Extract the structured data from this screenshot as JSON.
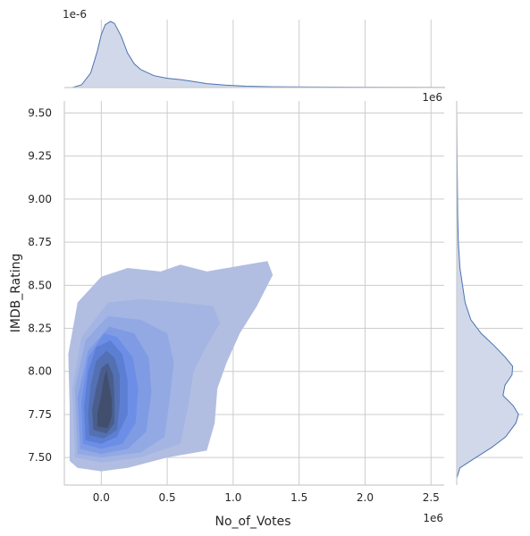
{
  "chart_data": {
    "type": "kde-jointplot",
    "xlabel": "No_of_Votes",
    "ylabel": "IMDB_Rating",
    "x_offset_label": "1e6",
    "top_marginal_offset_label": "1e-6",
    "right_marginal_offset_label": "1e6",
    "xlim": [
      -0.28,
      2.6
    ],
    "ylim": [
      7.34,
      9.57
    ],
    "x_ticks": [
      0.0,
      0.5,
      1.0,
      1.5,
      2.0,
      2.5
    ],
    "x_tick_labels": [
      "0.0",
      "0.5",
      "1.0",
      "1.5",
      "2.0",
      "2.5"
    ],
    "y_ticks": [
      7.5,
      7.75,
      8.0,
      8.25,
      8.5,
      8.75,
      9.0,
      9.25,
      9.5
    ],
    "y_tick_labels": [
      "7.50",
      "7.75",
      "8.00",
      "8.25",
      "8.50",
      "8.75",
      "9.00",
      "9.25",
      "9.50"
    ],
    "grid": true,
    "colors": {
      "levels": [
        "#b1bee2",
        "#a4b5e3",
        "#93a9e4",
        "#7f9be4",
        "#6d8ee6",
        "#5c7fd4",
        "#5370b3",
        "#4a5e8e",
        "#414e6d"
      ],
      "marginal_fill": "#d0d8ea",
      "marginal_line": "#4c72b0"
    },
    "marginal_x_density": [
      [
        -0.22,
        0.0
      ],
      [
        -0.15,
        0.04
      ],
      [
        -0.08,
        0.22
      ],
      [
        -0.03,
        0.55
      ],
      [
        0.0,
        0.8
      ],
      [
        0.03,
        0.95
      ],
      [
        0.07,
        1.0
      ],
      [
        0.1,
        0.97
      ],
      [
        0.15,
        0.78
      ],
      [
        0.2,
        0.52
      ],
      [
        0.25,
        0.36
      ],
      [
        0.3,
        0.27
      ],
      [
        0.4,
        0.18
      ],
      [
        0.5,
        0.14
      ],
      [
        0.6,
        0.12
      ],
      [
        0.7,
        0.09
      ],
      [
        0.8,
        0.06
      ],
      [
        0.95,
        0.035
      ],
      [
        1.1,
        0.02
      ],
      [
        1.3,
        0.012
      ],
      [
        1.6,
        0.008
      ],
      [
        2.0,
        0.005
      ],
      [
        2.4,
        0.003
      ],
      [
        2.6,
        0.002
      ]
    ],
    "marginal_y_density": [
      [
        7.38,
        0.0
      ],
      [
        7.44,
        0.05
      ],
      [
        7.5,
        0.3
      ],
      [
        7.56,
        0.55
      ],
      [
        7.62,
        0.76
      ],
      [
        7.7,
        0.92
      ],
      [
        7.75,
        0.96
      ],
      [
        7.8,
        0.88
      ],
      [
        7.86,
        0.72
      ],
      [
        7.92,
        0.75
      ],
      [
        7.98,
        0.86
      ],
      [
        8.03,
        0.87
      ],
      [
        8.08,
        0.76
      ],
      [
        8.15,
        0.58
      ],
      [
        8.22,
        0.38
      ],
      [
        8.3,
        0.22
      ],
      [
        8.4,
        0.13
      ],
      [
        8.5,
        0.09
      ],
      [
        8.6,
        0.05
      ],
      [
        8.75,
        0.025
      ],
      [
        8.9,
        0.015
      ],
      [
        9.1,
        0.01
      ],
      [
        9.3,
        0.004
      ],
      [
        9.55,
        0.0
      ]
    ],
    "joint_density_levels": [
      {
        "polygon": [
          [
            -0.24,
            7.48
          ],
          [
            -0.18,
            7.44
          ],
          [
            0.0,
            7.42
          ],
          [
            0.2,
            7.44
          ],
          [
            0.5,
            7.5
          ],
          [
            0.8,
            7.54
          ],
          [
            0.86,
            7.7
          ],
          [
            0.88,
            7.9
          ],
          [
            0.95,
            8.05
          ],
          [
            1.05,
            8.22
          ],
          [
            1.18,
            8.38
          ],
          [
            1.3,
            8.56
          ],
          [
            1.26,
            8.64
          ],
          [
            1.1,
            8.62
          ],
          [
            0.8,
            8.58
          ],
          [
            0.6,
            8.62
          ],
          [
            0.45,
            8.58
          ],
          [
            0.2,
            8.6
          ],
          [
            0.0,
            8.55
          ],
          [
            -0.18,
            8.4
          ],
          [
            -0.25,
            8.1
          ],
          [
            -0.24,
            7.8
          ]
        ]
      },
      {
        "polygon": [
          [
            -0.2,
            7.5
          ],
          [
            0.0,
            7.47
          ],
          [
            0.3,
            7.5
          ],
          [
            0.6,
            7.58
          ],
          [
            0.66,
            7.8
          ],
          [
            0.7,
            8.0
          ],
          [
            0.8,
            8.15
          ],
          [
            0.9,
            8.28
          ],
          [
            0.85,
            8.38
          ],
          [
            0.6,
            8.4
          ],
          [
            0.3,
            8.42
          ],
          [
            0.05,
            8.4
          ],
          [
            -0.15,
            8.2
          ],
          [
            -0.22,
            7.9
          ]
        ]
      },
      {
        "polygon": [
          [
            -0.18,
            7.52
          ],
          [
            0.0,
            7.5
          ],
          [
            0.3,
            7.53
          ],
          [
            0.48,
            7.62
          ],
          [
            0.52,
            7.85
          ],
          [
            0.55,
            8.05
          ],
          [
            0.5,
            8.22
          ],
          [
            0.3,
            8.3
          ],
          [
            0.05,
            8.32
          ],
          [
            -0.12,
            8.18
          ],
          [
            -0.2,
            7.9
          ]
        ]
      },
      {
        "polygon": [
          [
            -0.16,
            7.55
          ],
          [
            0.0,
            7.52
          ],
          [
            0.2,
            7.55
          ],
          [
            0.34,
            7.65
          ],
          [
            0.38,
            7.88
          ],
          [
            0.36,
            8.08
          ],
          [
            0.25,
            8.22
          ],
          [
            0.06,
            8.26
          ],
          [
            -0.1,
            8.12
          ],
          [
            -0.18,
            7.85
          ]
        ]
      },
      {
        "polygon": [
          [
            -0.14,
            7.58
          ],
          [
            0.0,
            7.55
          ],
          [
            0.16,
            7.58
          ],
          [
            0.26,
            7.7
          ],
          [
            0.28,
            7.9
          ],
          [
            0.24,
            8.08
          ],
          [
            0.12,
            8.2
          ],
          [
            0.02,
            8.22
          ],
          [
            -0.1,
            8.08
          ],
          [
            -0.15,
            7.82
          ]
        ]
      },
      {
        "polygon": [
          [
            -0.12,
            7.6
          ],
          [
            0.0,
            7.58
          ],
          [
            0.12,
            7.62
          ],
          [
            0.2,
            7.75
          ],
          [
            0.2,
            7.95
          ],
          [
            0.16,
            8.1
          ],
          [
            0.07,
            8.18
          ],
          [
            -0.04,
            8.14
          ],
          [
            -0.1,
            8.0
          ],
          [
            -0.13,
            7.8
          ]
        ]
      },
      {
        "polygon": [
          [
            -0.09,
            7.63
          ],
          [
            0.02,
            7.61
          ],
          [
            0.12,
            7.66
          ],
          [
            0.14,
            7.82
          ],
          [
            0.14,
            7.98
          ],
          [
            0.1,
            8.08
          ],
          [
            0.04,
            8.12
          ],
          [
            -0.04,
            8.06
          ],
          [
            -0.08,
            7.92
          ],
          [
            -0.1,
            7.76
          ]
        ]
      },
      {
        "polygon": [
          [
            -0.06,
            7.66
          ],
          [
            0.04,
            7.64
          ],
          [
            0.1,
            7.7
          ],
          [
            0.1,
            7.86
          ],
          [
            0.09,
            7.98
          ],
          [
            0.05,
            8.05
          ],
          [
            0.0,
            8.02
          ],
          [
            -0.04,
            7.9
          ],
          [
            -0.07,
            7.78
          ]
        ]
      },
      {
        "polygon": [
          [
            -0.03,
            7.68
          ],
          [
            0.05,
            7.67
          ],
          [
            0.08,
            7.74
          ],
          [
            0.08,
            7.84
          ],
          [
            0.06,
            7.92
          ],
          [
            0.04,
            8.01
          ],
          [
            0.02,
            7.96
          ],
          [
            0.0,
            7.86
          ],
          [
            -0.03,
            7.76
          ]
        ]
      }
    ]
  }
}
